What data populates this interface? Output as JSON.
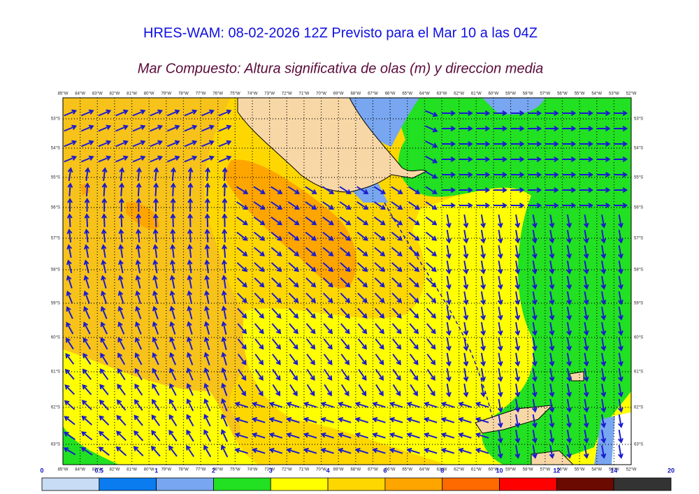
{
  "header": {
    "title": "HRES-WAM: 08-02-2026 12Z Previsto para el Mar 10 a las 04Z",
    "subtitle": "Mar Compuesto: Altura significativa de olas (m) y direccion media"
  },
  "map": {
    "longitudes": [
      "85°W",
      "84°W",
      "83°W",
      "82°W",
      "81°W",
      "80°W",
      "79°W",
      "78°W",
      "77°W",
      "76°W",
      "75°W",
      "74°W",
      "73°W",
      "72°W",
      "71°W",
      "70°W",
      "69°W",
      "68°W",
      "67°W",
      "66°W",
      "65°W",
      "64°W",
      "63°W",
      "62°W",
      "61°W",
      "60°W",
      "59°W",
      "58°W",
      "57°W",
      "56°W",
      "55°W",
      "54°W",
      "53°W",
      "52°W"
    ],
    "latitudes": [
      "53°S",
      "54°S",
      "55°S",
      "56°S",
      "57°S",
      "58°S",
      "59°S",
      "60°S",
      "61°S",
      "62°S",
      "63°S"
    ]
  },
  "colorbar": {
    "ticks": [
      0,
      0.5,
      1,
      2,
      3,
      4,
      6,
      8,
      10,
      12,
      14,
      20
    ],
    "colors": [
      "#c8dcf5",
      "#0a7cf0",
      "#78a6f0",
      "#22e022",
      "#ffff00",
      "#ffd700",
      "#ffa500",
      "#ff6a00",
      "#ff0000",
      "#6b0a00",
      "#333333"
    ]
  }
}
